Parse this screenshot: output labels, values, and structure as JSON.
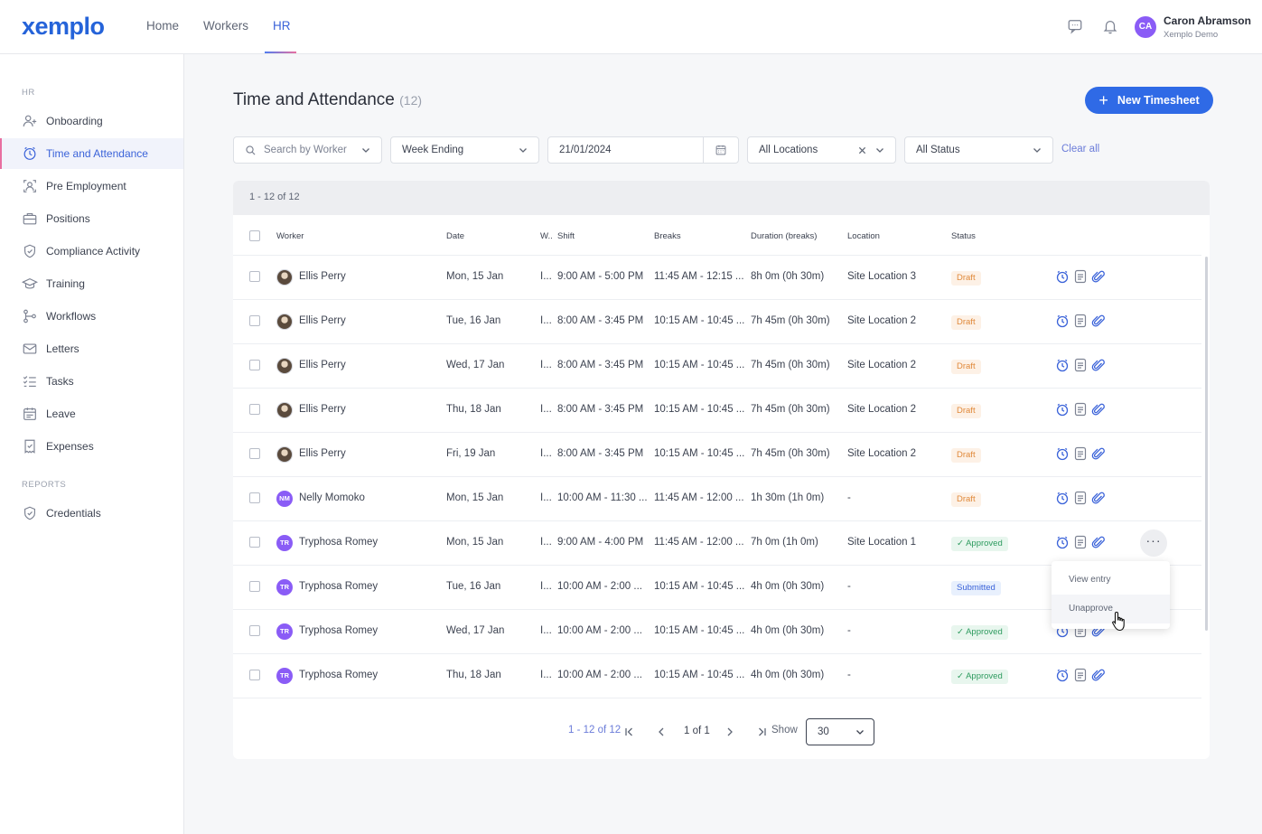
{
  "app": {
    "logo": "xemplo"
  },
  "topnav": {
    "items": [
      "Home",
      "Workers",
      "HR"
    ],
    "active": "HR"
  },
  "user": {
    "initials": "CA",
    "name": "Caron Abramson",
    "org": "Xemplo Demo"
  },
  "sidebar": {
    "section_hr": "HR",
    "items": [
      {
        "label": "Onboarding",
        "icon": "add-person-icon"
      },
      {
        "label": "Time and Attendance",
        "icon": "clock-icon",
        "active": true
      },
      {
        "label": "Pre Employment",
        "icon": "person-badge-icon"
      },
      {
        "label": "Positions",
        "icon": "briefcase-icon"
      },
      {
        "label": "Compliance Activity",
        "icon": "shield-check-icon"
      },
      {
        "label": "Training",
        "icon": "graduation-cap-icon"
      },
      {
        "label": "Workflows",
        "icon": "workflow-icon"
      },
      {
        "label": "Letters",
        "icon": "envelope-icon"
      },
      {
        "label": "Tasks",
        "icon": "checklist-icon"
      },
      {
        "label": "Leave",
        "icon": "calendar-icon"
      },
      {
        "label": "Expenses",
        "icon": "receipt-icon"
      }
    ],
    "section_reports": "REPORTS",
    "report_items": [
      {
        "label": "Credentials",
        "icon": "badge-check-icon"
      }
    ]
  },
  "page": {
    "title": "Time and Attendance",
    "count": "(12)",
    "new_button": "New Timesheet"
  },
  "filters": {
    "search_placeholder": "Search by Worker",
    "week": "Week Ending",
    "date": "21/01/2024",
    "location": "All Locations",
    "status": "All Status",
    "clear_all": "Clear all"
  },
  "table": {
    "range_label": "1 - 12 of 12",
    "headers": {
      "worker": "Worker",
      "date": "Date",
      "w": "W..",
      "shift": "Shift",
      "breaks": "Breaks",
      "duration": "Duration (breaks)",
      "location": "Location",
      "status": "Status"
    },
    "rows": [
      {
        "worker": "Ellis Perry",
        "avatar": "photo",
        "date": "Mon, 15 Jan",
        "w": "I...",
        "shift": "9:00 AM - 5:00 PM",
        "breaks": "11:45 AM - 12:15 ...",
        "duration": "8h 0m (0h 30m)",
        "location": "Site Location 3",
        "status": "Draft"
      },
      {
        "worker": "Ellis Perry",
        "avatar": "photo",
        "date": "Tue, 16 Jan",
        "w": "I...",
        "shift": "8:00 AM - 3:45 PM",
        "breaks": "10:15 AM - 10:45 ...",
        "duration": "7h 45m (0h 30m)",
        "location": "Site Location 2",
        "status": "Draft"
      },
      {
        "worker": "Ellis Perry",
        "avatar": "photo",
        "date": "Wed, 17 Jan",
        "w": "I...",
        "shift": "8:00 AM - 3:45 PM",
        "breaks": "10:15 AM - 10:45 ...",
        "duration": "7h 45m (0h 30m)",
        "location": "Site Location 2",
        "status": "Draft"
      },
      {
        "worker": "Ellis Perry",
        "avatar": "photo",
        "date": "Thu, 18 Jan",
        "w": "I...",
        "shift": "8:00 AM - 3:45 PM",
        "breaks": "10:15 AM - 10:45 ...",
        "duration": "7h 45m (0h 30m)",
        "location": "Site Location 2",
        "status": "Draft"
      },
      {
        "worker": "Ellis Perry",
        "avatar": "photo",
        "date": "Fri, 19 Jan",
        "w": "I...",
        "shift": "8:00 AM - 3:45 PM",
        "breaks": "10:15 AM - 10:45 ...",
        "duration": "7h 45m (0h 30m)",
        "location": "Site Location 2",
        "status": "Draft"
      },
      {
        "worker": "Nelly Momoko",
        "avatar": "NM",
        "date": "Mon, 15 Jan",
        "w": "I...",
        "shift": "10:00 AM - 11:30 ...",
        "breaks": "11:45 AM - 12:00 ...",
        "duration": "1h 30m (1h 0m)",
        "location": "-",
        "status": "Draft"
      },
      {
        "worker": "Tryphosa Romey",
        "avatar": "TR",
        "date": "Mon, 15 Jan",
        "w": "I...",
        "shift": "9:00 AM - 4:00 PM",
        "breaks": "11:45 AM - 12:00 ...",
        "duration": "7h 0m (1h 0m)",
        "location": "Site Location 1",
        "status": "Approved"
      },
      {
        "worker": "Tryphosa Romey",
        "avatar": "TR",
        "date": "Tue, 16 Jan",
        "w": "I...",
        "shift": "10:00 AM - 2:00 ...",
        "breaks": "10:15 AM - 10:45 ...",
        "duration": "4h 0m (0h 30m)",
        "location": "-",
        "status": "Submitted"
      },
      {
        "worker": "Tryphosa Romey",
        "avatar": "TR",
        "date": "Wed, 17 Jan",
        "w": "I...",
        "shift": "10:00 AM - 2:00 ...",
        "breaks": "10:15 AM - 10:45 ...",
        "duration": "4h 0m (0h 30m)",
        "location": "-",
        "status": "Approved"
      },
      {
        "worker": "Tryphosa Romey",
        "avatar": "TR",
        "date": "Thu, 18 Jan",
        "w": "I...",
        "shift": "10:00 AM - 2:00 ...",
        "breaks": "10:15 AM - 10:45 ...",
        "duration": "4h 0m (0h 30m)",
        "location": "-",
        "status": "Approved"
      }
    ]
  },
  "context_menu": {
    "items": [
      "View entry",
      "Unapprove"
    ],
    "hovered": "Unapprove"
  },
  "pagination": {
    "range": "1 - 12 of 12",
    "page": "1 of 1",
    "show_label": "Show",
    "page_size": "30"
  },
  "colors": {
    "primary": "#2f6ae6",
    "accent_pink": "#e86fa0",
    "draft": "#e0893a",
    "approved": "#2e9b5f",
    "submitted": "#3b63d9"
  }
}
